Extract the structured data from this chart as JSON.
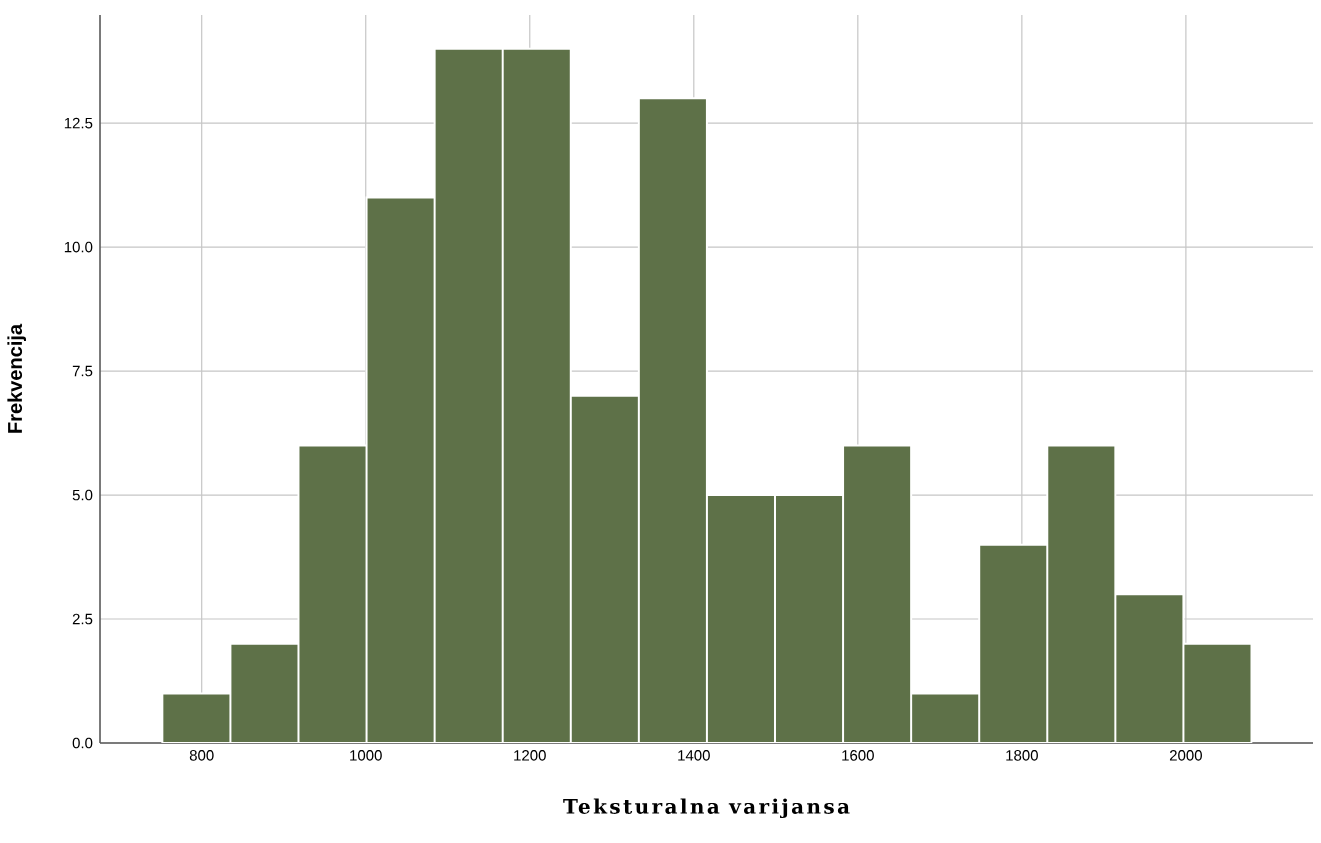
{
  "chart_data": {
    "type": "histogram",
    "xlabel": "Teksturalna varijansa",
    "ylabel": "Frekvencija",
    "bins": [
      752,
      835,
      918,
      1001,
      1084,
      1167,
      1250,
      1333,
      1416,
      1499,
      1582,
      1665,
      1748,
      1831,
      1914,
      1997,
      2080
    ],
    "values": [
      1,
      2,
      6,
      11,
      14,
      14,
      7,
      13,
      5,
      5,
      6,
      1,
      4,
      6,
      3,
      2
    ],
    "color": "#5e7148",
    "xlim": [
      676,
      2155
    ],
    "xticks": [
      800,
      1000,
      1200,
      1400,
      1600,
      1800,
      2000
    ],
    "ylim": [
      0,
      14.68
    ],
    "yticks": [
      {
        "value": 0,
        "label": "0.0"
      },
      2.5,
      {
        "value": 5,
        "label": "5.0"
      },
      7.5,
      {
        "value": 10,
        "label": "10.0"
      },
      12.5
    ],
    "grid": true
  }
}
